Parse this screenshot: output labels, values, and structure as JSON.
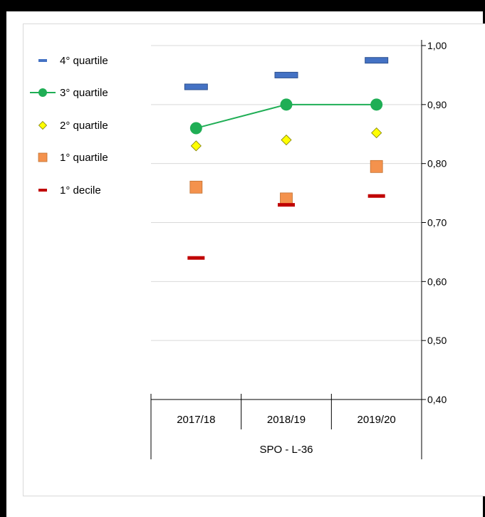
{
  "chart_data": {
    "type": "scatter",
    "categories": [
      "2017/18",
      "2018/19",
      "2019/20"
    ],
    "group_label": "SPO - L-36",
    "ylim": [
      0.4,
      1.0
    ],
    "yticks": [
      "0,40",
      "0,50",
      "0,60",
      "0,70",
      "0,80",
      "0,90",
      "1,00"
    ],
    "yaxis_position": "right",
    "grid": true,
    "legend_position": "left",
    "series": [
      {
        "name": "4° quartile",
        "marker": "dash",
        "color": "#4472c4",
        "values": [
          0.93,
          0.95,
          0.975
        ]
      },
      {
        "name": "3° quartile",
        "marker": "circle-line",
        "color": "#1fae55",
        "values": [
          0.86,
          0.9,
          0.9
        ]
      },
      {
        "name": "2° quartile",
        "marker": "diamond",
        "color": "#ffff00",
        "values": [
          0.83,
          0.84,
          0.852
        ]
      },
      {
        "name": "1° quartile",
        "marker": "square",
        "color": "#f4924d",
        "values": [
          0.76,
          0.74,
          0.795
        ]
      },
      {
        "name": "1° decile",
        "marker": "dash",
        "color": "#c00000",
        "values": [
          0.64,
          0.73,
          0.745
        ]
      }
    ]
  }
}
